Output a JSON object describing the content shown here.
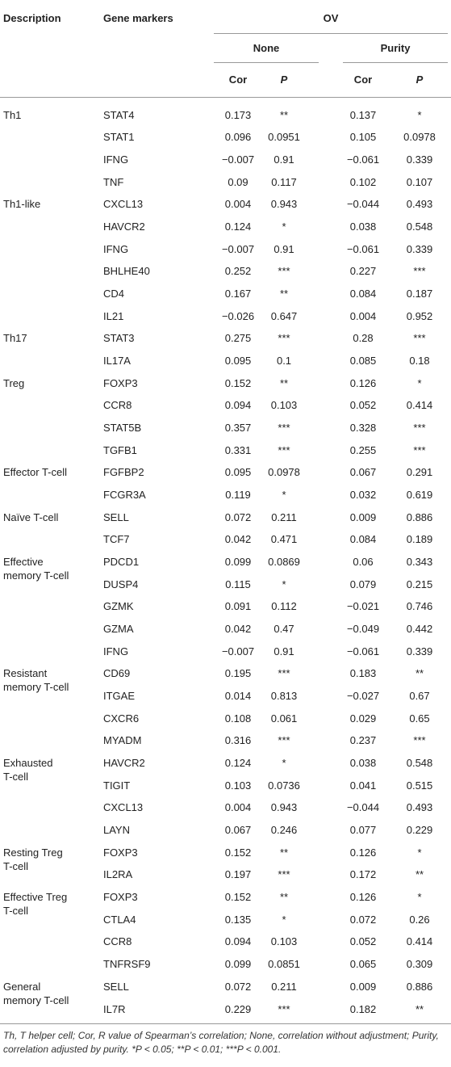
{
  "header": {
    "description": "Description",
    "gene_markers": "Gene markers",
    "cohort": "OV",
    "groups": [
      "None",
      "Purity"
    ],
    "columns": [
      "Cor",
      "P",
      "Cor",
      "P"
    ]
  },
  "table": {
    "groups": [
      {
        "description": "Th1",
        "rows": [
          [
            "STAT4",
            "0.173",
            "**",
            "0.137",
            "*"
          ],
          [
            "STAT1",
            "0.096",
            "0.0951",
            "0.105",
            "0.0978"
          ],
          [
            "IFNG",
            "−0.007",
            "0.91",
            "−0.061",
            "0.339"
          ],
          [
            "TNF",
            "0.09",
            "0.117",
            "0.102",
            "0.107"
          ]
        ]
      },
      {
        "description": "Th1-like",
        "rows": [
          [
            "CXCL13",
            "0.004",
            "0.943",
            "−0.044",
            "0.493"
          ],
          [
            "HAVCR2",
            "0.124",
            "*",
            "0.038",
            "0.548"
          ],
          [
            "IFNG",
            "−0.007",
            "0.91",
            "−0.061",
            "0.339"
          ],
          [
            "BHLHE40",
            "0.252",
            "***",
            "0.227",
            "***"
          ],
          [
            "CD4",
            "0.167",
            "**",
            "0.084",
            "0.187"
          ],
          [
            "IL21",
            "−0.026",
            "0.647",
            "0.004",
            "0.952"
          ]
        ]
      },
      {
        "description": "Th17",
        "rows": [
          [
            "STAT3",
            "0.275",
            "***",
            "0.28",
            "***"
          ],
          [
            "IL17A",
            "0.095",
            "0.1",
            "0.085",
            "0.18"
          ]
        ]
      },
      {
        "description": "Treg",
        "rows": [
          [
            "FOXP3",
            "0.152",
            "**",
            "0.126",
            "*"
          ],
          [
            "CCR8",
            "0.094",
            "0.103",
            "0.052",
            "0.414"
          ],
          [
            "STAT5B",
            "0.357",
            "***",
            "0.328",
            "***"
          ],
          [
            "TGFB1",
            "0.331",
            "***",
            "0.255",
            "***"
          ]
        ]
      },
      {
        "description": "Effector T-cell",
        "rows": [
          [
            "FGFBP2",
            "0.095",
            "0.0978",
            "0.067",
            "0.291"
          ],
          [
            "FCGR3A",
            "0.119",
            "*",
            "0.032",
            "0.619"
          ]
        ]
      },
      {
        "description": "Naïve T-cell",
        "rows": [
          [
            "SELL",
            "0.072",
            "0.211",
            "0.009",
            "0.886"
          ],
          [
            "TCF7",
            "0.042",
            "0.471",
            "0.084",
            "0.189"
          ]
        ]
      },
      {
        "description": "Effective\nmemory T-cell",
        "rows": [
          [
            "PDCD1",
            "0.099",
            "0.0869",
            "0.06",
            "0.343"
          ],
          [
            "DUSP4",
            "0.115",
            "*",
            "0.079",
            "0.215"
          ],
          [
            "GZMK",
            "0.091",
            "0.112",
            "−0.021",
            "0.746"
          ],
          [
            "GZMA",
            "0.042",
            "0.47",
            "−0.049",
            "0.442"
          ],
          [
            "IFNG",
            "−0.007",
            "0.91",
            "−0.061",
            "0.339"
          ]
        ]
      },
      {
        "description": "Resistant\nmemory T-cell",
        "rows": [
          [
            "CD69",
            "0.195",
            "***",
            "0.183",
            "**"
          ],
          [
            "ITGAE",
            "0.014",
            "0.813",
            "−0.027",
            "0.67"
          ],
          [
            "CXCR6",
            "0.108",
            "0.061",
            "0.029",
            "0.65"
          ],
          [
            "MYADM",
            "0.316",
            "***",
            "0.237",
            "***"
          ]
        ]
      },
      {
        "description": "Exhausted\nT-cell",
        "rows": [
          [
            "HAVCR2",
            "0.124",
            "*",
            "0.038",
            "0.548"
          ],
          [
            "TIGIT",
            "0.103",
            "0.0736",
            "0.041",
            "0.515"
          ],
          [
            "CXCL13",
            "0.004",
            "0.943",
            "−0.044",
            "0.493"
          ],
          [
            "LAYN",
            "0.067",
            "0.246",
            "0.077",
            "0.229"
          ]
        ]
      },
      {
        "description": "Resting Treg\nT-cell",
        "rows": [
          [
            "FOXP3",
            "0.152",
            "**",
            "0.126",
            "*"
          ],
          [
            "IL2RA",
            "0.197",
            "***",
            "0.172",
            "**"
          ]
        ]
      },
      {
        "description": "Effective Treg\nT-cell",
        "rows": [
          [
            "FOXP3",
            "0.152",
            "**",
            "0.126",
            "*"
          ],
          [
            "CTLA4",
            "0.135",
            "*",
            "0.072",
            "0.26"
          ],
          [
            "CCR8",
            "0.094",
            "0.103",
            "0.052",
            "0.414"
          ],
          [
            "TNFRSF9",
            "0.099",
            "0.0851",
            "0.065",
            "0.309"
          ]
        ]
      },
      {
        "description": "General\nmemory T-cell",
        "rows": [
          [
            "SELL",
            "0.072",
            "0.211",
            "0.009",
            "0.886"
          ],
          [
            "IL7R",
            "0.229",
            "***",
            "0.182",
            "**"
          ]
        ]
      }
    ]
  },
  "footnote": "Th, T helper cell; Cor, R value of Spearman’s correlation; None, correlation without adjustment; Purity, correlation adjusted by purity. *P < 0.05; **P < 0.01; ***P < 0.001."
}
